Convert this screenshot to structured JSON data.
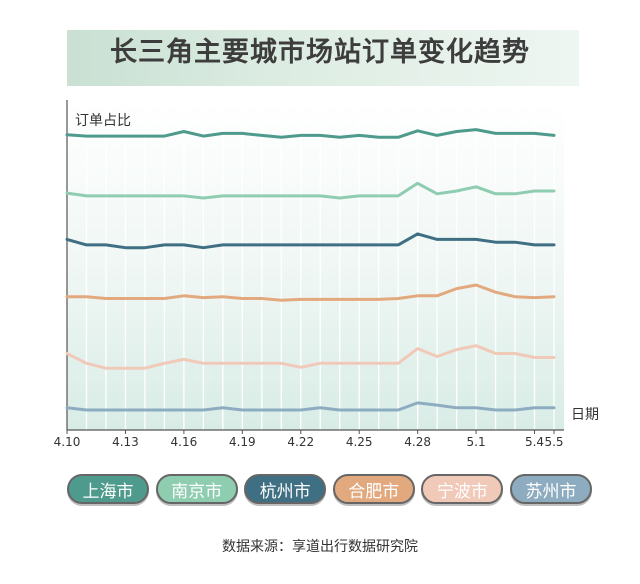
{
  "title": "长三角主要城市场站订单变化趋势",
  "source": "数据来源：享道出行数据研究院",
  "chart_data": {
    "type": "line",
    "ylabel": "订单占比",
    "xlabel": "日期",
    "x_tick_labels": [
      "4.10",
      "4.13",
      "4.16",
      "4.19",
      "4.22",
      "4.25",
      "4.28",
      "5.1",
      "5.4",
      "5.5"
    ],
    "x_tick_index": [
      0,
      3,
      6,
      9,
      12,
      15,
      18,
      21,
      24,
      25
    ],
    "n_points": 26,
    "y_axis_labels_shown": false,
    "ylim": [
      0,
      100
    ],
    "series": [
      {
        "name": "上海市",
        "color": "#4e9a8c",
        "values": [
          85,
          83,
          83,
          83,
          83,
          83,
          90,
          83,
          87,
          87,
          84,
          81,
          84,
          84,
          81,
          84,
          81,
          81,
          91,
          84,
          90,
          93,
          87,
          87,
          87,
          84
        ]
      },
      {
        "name": "南京市",
        "color": "#8fcdb1",
        "values": [
          67,
          63,
          63,
          63,
          63,
          63,
          63,
          60,
          63,
          63,
          63,
          63,
          63,
          63,
          60,
          63,
          63,
          63,
          81,
          66,
          70,
          76,
          66,
          66,
          70,
          70
        ]
      },
      {
        "name": "杭州市",
        "color": "#3e6f82",
        "values": [
          55,
          49,
          49,
          46,
          46,
          49,
          49,
          46,
          49,
          49,
          49,
          49,
          49,
          49,
          49,
          49,
          49,
          49,
          61,
          55,
          55,
          55,
          52,
          52,
          49,
          49
        ]
      },
      {
        "name": "合肥市",
        "color": "#e2a97f",
        "values": [
          37,
          37,
          35,
          35,
          35,
          35,
          38,
          36,
          37,
          35,
          35,
          33,
          34,
          34,
          34,
          34,
          34,
          35,
          38,
          38,
          46,
          50,
          42,
          37,
          36,
          37
        ]
      },
      {
        "name": "宁波市",
        "color": "#f1c9b9",
        "values": [
          27,
          17,
          12,
          12,
          12,
          17,
          21,
          17,
          17,
          17,
          17,
          17,
          13,
          17,
          17,
          17,
          17,
          17,
          32,
          24,
          31,
          35,
          27,
          27,
          23,
          23
        ]
      },
      {
        "name": "苏州市",
        "color": "#8eacc0",
        "values": [
          4,
          0,
          0,
          0,
          0,
          0,
          0,
          0,
          4,
          0,
          0,
          0,
          0,
          4,
          0,
          0,
          0,
          0,
          13,
          9,
          4,
          4,
          0,
          0,
          4,
          4
        ]
      }
    ]
  },
  "legend": [
    {
      "label": "上海市",
      "color": "#4e9a8c"
    },
    {
      "label": "南京市",
      "color": "#8fcdb1"
    },
    {
      "label": "杭州市",
      "color": "#3e6f82"
    },
    {
      "label": "合肥市",
      "color": "#e2a97f"
    },
    {
      "label": "宁波市",
      "color": "#f1c9b9"
    },
    {
      "label": "苏州市",
      "color": "#8eacc0"
    }
  ]
}
